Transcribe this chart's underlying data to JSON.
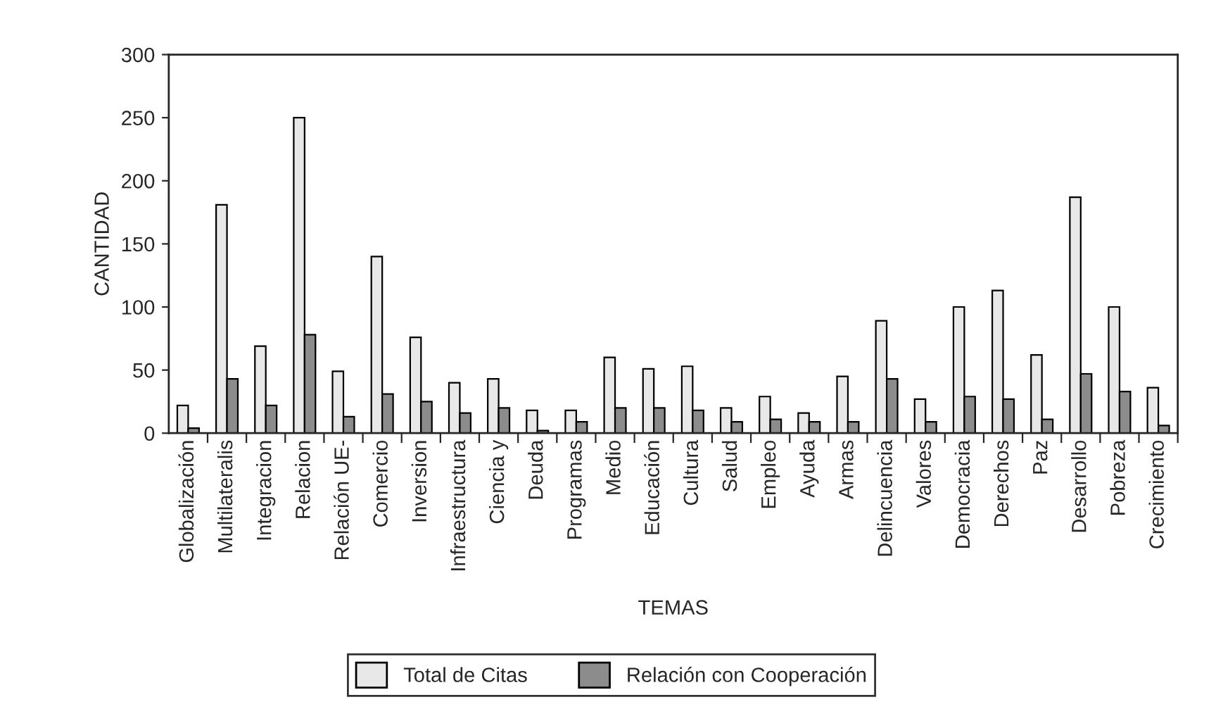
{
  "chart_data": {
    "type": "bar",
    "xlabel": "TEMAS",
    "ylabel": "CANTIDAD",
    "categories": [
      "Globalización",
      "Multilateralis",
      "Integracion",
      "Relacion",
      "Relación UE-",
      "Comercio",
      "Inversion",
      "Infraestructura",
      "Ciencia y",
      "Deuda",
      "Programas",
      "Medio",
      "Educación",
      "Cultura",
      "Salud",
      "Empleo",
      "Ayuda",
      "Armas",
      "Delincuencia",
      "Valores",
      "Democracia",
      "Derechos",
      "Paz",
      "Desarrollo",
      "Pobreza",
      "Crecimiento"
    ],
    "series": [
      {
        "name": "Total de Citas",
        "color": "#e8e8e8",
        "values": [
          22,
          181,
          69,
          250,
          49,
          140,
          76,
          40,
          43,
          18,
          18,
          60,
          51,
          53,
          20,
          29,
          16,
          45,
          89,
          27,
          100,
          113,
          62,
          187,
          100,
          36
        ]
      },
      {
        "name": "Relación con Cooperación",
        "color": "#8c8c8c",
        "values": [
          4,
          43,
          22,
          78,
          13,
          31,
          25,
          16,
          20,
          2,
          9,
          20,
          20,
          18,
          9,
          11,
          9,
          9,
          43,
          9,
          29,
          27,
          11,
          47,
          33,
          6
        ]
      }
    ],
    "ylim": [
      0,
      300
    ],
    "yticks": [
      0,
      50,
      100,
      150,
      200,
      250,
      300
    ],
    "grid": false,
    "legend": "bottom"
  }
}
